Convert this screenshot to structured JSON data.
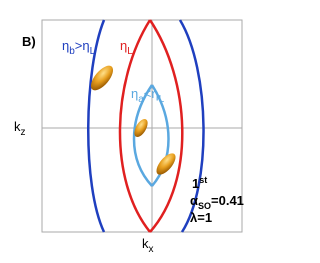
{
  "panel_label": "B)",
  "curve_labels": [
    [
      {
        "text": "η",
        "sub": "b"
      },
      {
        "text": ">η",
        "sub": "L"
      }
    ],
    [
      {
        "text": "η",
        "sub": "L"
      }
    ],
    [
      {
        "text": "η",
        "sub": "a"
      },
      {
        "text": "<η",
        "sub": "L"
      }
    ]
  ],
  "axes": {
    "y": "k",
    "y_sub": "z",
    "x": "k",
    "x_sub": "x"
  },
  "info": {
    "order": "1",
    "order_sup": "st",
    "alpha": "α",
    "alpha_sub": "SO",
    "alpha_value": "=0.41",
    "lambda": "λ=1"
  }
}
